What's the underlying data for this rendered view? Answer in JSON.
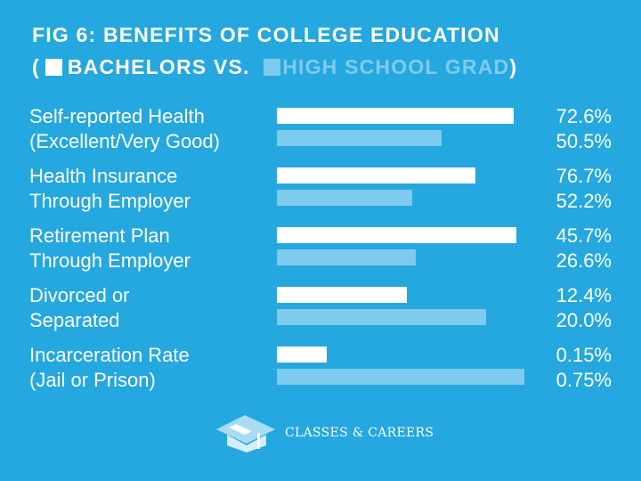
{
  "colors": {
    "background": "#25a7df",
    "bachelors": "#ffffff",
    "high_school": "#7fcbee"
  },
  "brand": "CLASSES & CAREERS",
  "chart_data": {
    "type": "bar",
    "orientation": "horizontal",
    "title": "FIG 6: BENEFITS OF COLLEGE EDUCATION",
    "legend": {
      "open": "(",
      "bachelors": "BACHELORS VS.",
      "high_school": "HIGH SCHOOL GRAD",
      "close": ")",
      "placement": "top"
    },
    "series": [
      {
        "name": "Bachelors"
      },
      {
        "name": "High School Grad"
      }
    ],
    "groups": [
      {
        "label_lines": [
          "Self-reported Health",
          "(Excellent/Very Good)"
        ],
        "values": [
          72.6,
          50.5
        ],
        "value_labels": [
          "72.6%",
          "50.5%"
        ],
        "scale_max": 76.4
      },
      {
        "label_lines": [
          "Health Insurance",
          "Through Employer"
        ],
        "values": [
          76.7,
          52.2
        ],
        "value_labels": [
          "76.7%",
          "52.2%"
        ],
        "scale_max": 96.3
      },
      {
        "label_lines": [
          "Retirement Plan",
          "Through Employer"
        ],
        "values": [
          45.7,
          26.6
        ],
        "value_labels": [
          "45.7%",
          "26.6%"
        ],
        "scale_max": 47.6
      },
      {
        "label_lines": [
          "Divorced or",
          "Separated"
        ],
        "values": [
          12.4,
          20.0
        ],
        "value_labels": [
          "12.4%",
          "20.0%"
        ],
        "scale_max": 23.8
      },
      {
        "label_lines": [
          "Incarceration Rate",
          "(Jail or Prison)"
        ],
        "values": [
          0.15,
          0.75
        ],
        "value_labels": [
          "0.15%",
          "0.75%"
        ],
        "scale_max": 0.755
      }
    ]
  }
}
